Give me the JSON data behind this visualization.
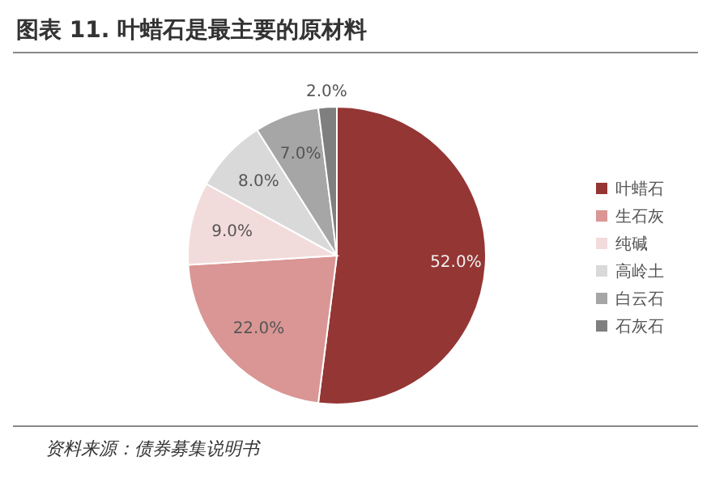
{
  "chart_data": {
    "type": "pie",
    "title": "图表 11. 叶蜡石是最主要的原材料",
    "categories": [
      "叶蜡石",
      "生石灰",
      "纯碱",
      "高岭土",
      "白云石",
      "石灰石"
    ],
    "values": [
      52,
      22,
      9,
      8,
      7,
      2
    ],
    "colors": [
      "#943634",
      "#d99694",
      "#f2dcdb",
      "#d9d9d9",
      "#a6a6a6",
      "#7f7f7f"
    ],
    "value_labels": [
      "52.0%",
      "22.0%",
      "9.0%",
      "8.0%",
      "7.0%",
      "2.0%"
    ],
    "legend": "right",
    "annotations": [
      "资料来源：债券募集说明书"
    ]
  }
}
